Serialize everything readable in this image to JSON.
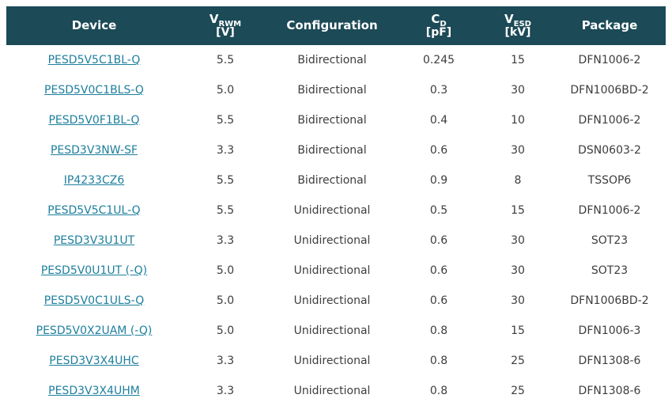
{
  "colors": {
    "header_bg": "#1c4a57",
    "header_text": "#ffffff",
    "link": "#1d7f9d",
    "body_text": "#3d3d3d"
  },
  "table": {
    "columns": [
      {
        "id": "device",
        "label": "Device"
      },
      {
        "id": "vrwm",
        "main": "V",
        "sub": "RWM",
        "unit": "[V]"
      },
      {
        "id": "config",
        "label": "Configuration"
      },
      {
        "id": "cd",
        "main": "C",
        "sub": "D",
        "unit": "[pF]"
      },
      {
        "id": "vesd",
        "main": "V",
        "sub": "ESD",
        "unit": "[kV]"
      },
      {
        "id": "package",
        "label": "Package"
      }
    ],
    "rows": [
      {
        "device": "PESD5V5C1BL-Q",
        "vrwm": "5.5",
        "config": "Bidirectional",
        "cd": "0.245",
        "vesd": "15",
        "package": "DFN1006-2"
      },
      {
        "device": "PESD5V0C1BLS-Q",
        "vrwm": "5.0",
        "config": "Bidirectional",
        "cd": "0.3",
        "vesd": "30",
        "package": "DFN1006BD-2"
      },
      {
        "device": "PESD5V0F1BL-Q",
        "vrwm": "5.5",
        "config": "Bidirectional",
        "cd": "0.4",
        "vesd": "10",
        "package": "DFN1006-2"
      },
      {
        "device": "PESD3V3NW-SF",
        "vrwm": "3.3",
        "config": "Bidirectional",
        "cd": "0.6",
        "vesd": "30",
        "package": "DSN0603-2"
      },
      {
        "device": "IP4233CZ6",
        "vrwm": "5.5",
        "config": "Bidirectional",
        "cd": "0.9",
        "vesd": "8",
        "package": "TSSOP6"
      },
      {
        "device": "PESD5V5C1UL-Q",
        "vrwm": "5.5",
        "config": "Unidirectional",
        "cd": "0.5",
        "vesd": "15",
        "package": "DFN1006-2"
      },
      {
        "device": "PESD3V3U1UT",
        "vrwm": "3.3",
        "config": "Unidirectional",
        "cd": "0.6",
        "vesd": "30",
        "package": "SOT23"
      },
      {
        "device": "PESD5V0U1UT (-Q)",
        "vrwm": "5.0",
        "config": "Unidirectional",
        "cd": "0.6",
        "vesd": "30",
        "package": "SOT23"
      },
      {
        "device": "PESD5V0C1ULS-Q",
        "vrwm": "5.0",
        "config": "Unidirectional",
        "cd": "0.6",
        "vesd": "30",
        "package": "DFN1006BD-2"
      },
      {
        "device": "PESD5V0X2UAM (-Q)",
        "vrwm": "5.0",
        "config": "Unidirectional",
        "cd": "0.8",
        "vesd": "15",
        "package": "DFN1006-3"
      },
      {
        "device": "PESD3V3X4UHC",
        "vrwm": "3.3",
        "config": "Unidirectional",
        "cd": "0.8",
        "vesd": "25",
        "package": "DFN1308-6"
      },
      {
        "device": "PESD3V3X4UHM",
        "vrwm": "3.3",
        "config": "Unidirectional",
        "cd": "0.8",
        "vesd": "25",
        "package": "DFN1308-6"
      }
    ]
  }
}
